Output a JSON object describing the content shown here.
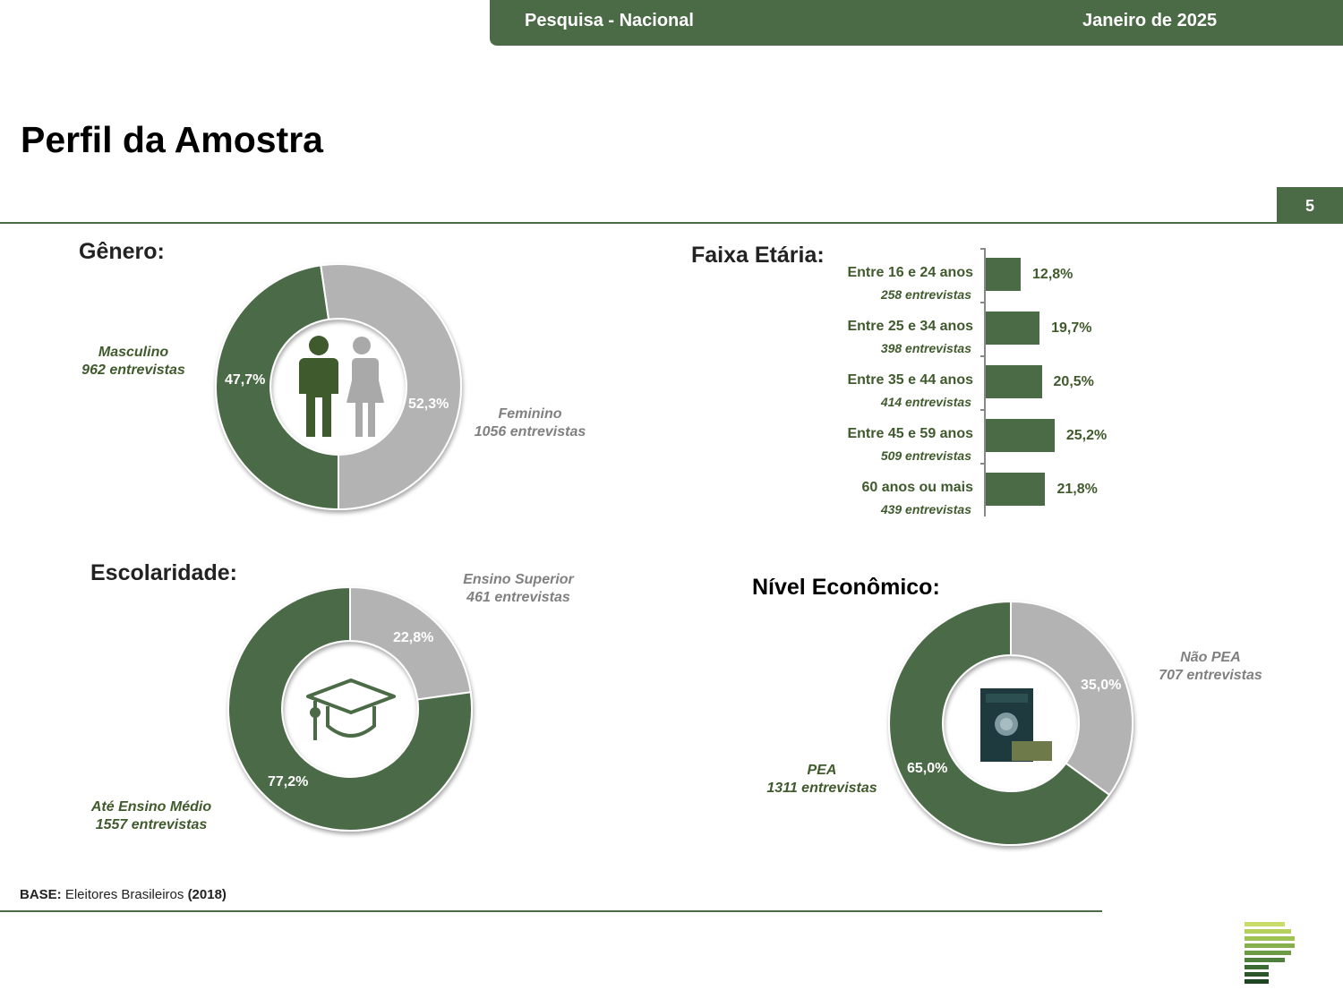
{
  "header": {
    "survey": "Pesquisa - Nacional",
    "date": "Janeiro de 2025"
  },
  "page": {
    "title": "Perfil da Amostra",
    "number": "5"
  },
  "colors": {
    "green": "#4b6a46",
    "gray": "#b3b3b3",
    "dark_text": "#3f5a2c"
  },
  "icons": {
    "gender": "man-woman-icon",
    "education": "graduation-cap-icon",
    "economic": "work-card-icon"
  },
  "chart_data": [
    {
      "type": "pie",
      "title": "Gênero:",
      "slices": [
        {
          "label": "Masculino",
          "sublabel": "962 entrevistas",
          "value": 47.7,
          "display": "47,7%"
        },
        {
          "label": "Feminino",
          "sublabel": "1056 entrevistas",
          "value": 52.3,
          "display": "52,3%"
        }
      ]
    },
    {
      "type": "bar",
      "title": "Faixa Etária:",
      "categories": [
        "Entre 16 e 24 anos",
        "Entre 25 e 34 anos",
        "Entre 35 e 44 anos",
        "Entre 45 e 59 anos",
        "60 anos ou mais"
      ],
      "sublabels": [
        "258 entrevistas",
        "398 entrevistas",
        "414 entrevistas",
        "509 entrevistas",
        "439 entrevistas"
      ],
      "values": [
        12.8,
        19.7,
        20.5,
        25.2,
        21.8
      ],
      "display": [
        "12,8%",
        "19,7%",
        "20,5%",
        "25,2%",
        "21,8%"
      ]
    },
    {
      "type": "pie",
      "title": "Escolaridade:",
      "slices": [
        {
          "label": "Ensino Superior",
          "sublabel": "461 entrevistas",
          "value": 22.8,
          "display": "22,8%"
        },
        {
          "label": "Até Ensino Médio",
          "sublabel": "1557 entrevistas",
          "value": 77.2,
          "display": "77,2%"
        }
      ]
    },
    {
      "type": "pie",
      "title": "Nível Econômico:",
      "slices": [
        {
          "label": "Não PEA",
          "sublabel": "707 entrevistas",
          "value": 35.0,
          "display": "35,0%"
        },
        {
          "label": "PEA",
          "sublabel": "1311 entrevistas",
          "value": 65.0,
          "display": "65,0%"
        }
      ]
    }
  ],
  "footer": {
    "base_label": "BASE:",
    "base_text": " Eleitores Brasileiros ",
    "base_year": "(2018)"
  }
}
